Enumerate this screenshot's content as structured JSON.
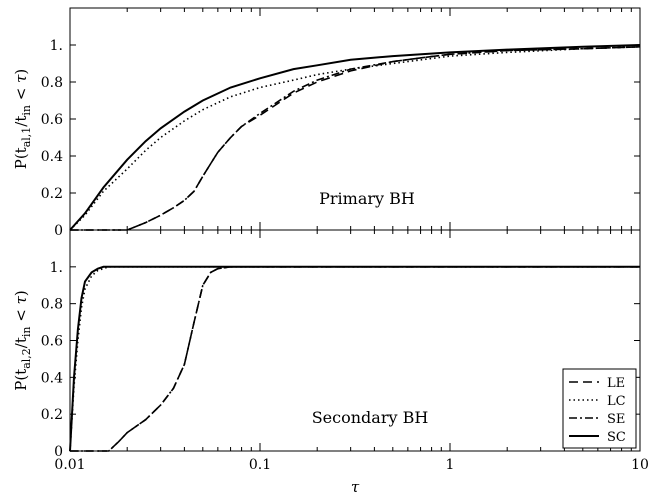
{
  "chart_data": [
    {
      "type": "line",
      "panel": "top",
      "xscale": "log",
      "xlim": [
        0.01,
        10
      ],
      "ylim": [
        0,
        1.2
      ],
      "yticks": [
        0,
        0.2,
        0.4,
        0.6,
        0.8,
        1.0
      ],
      "ytick_labels": [
        "0",
        "0.2",
        "0.4",
        "0.6",
        "0.8",
        "1."
      ],
      "ylabel": "P(t_al,1/t_in < τ)",
      "annotation": "Primary BH",
      "series": [
        {
          "name": "LE",
          "style": "dashed",
          "x": [
            0.01,
            0.015,
            0.02,
            0.025,
            0.03,
            0.035,
            0.04,
            0.045,
            0.05,
            0.06,
            0.07,
            0.08,
            0.1,
            0.15,
            0.2,
            0.3,
            0.5,
            0.7,
            1,
            2,
            5,
            10
          ],
          "y": [
            0,
            0,
            0.0,
            0.04,
            0.08,
            0.12,
            0.16,
            0.21,
            0.29,
            0.42,
            0.5,
            0.56,
            0.62,
            0.74,
            0.8,
            0.86,
            0.91,
            0.93,
            0.95,
            0.97,
            0.98,
            0.99
          ]
        },
        {
          "name": "LC",
          "style": "dotted",
          "x": [
            0.01,
            0.012,
            0.015,
            0.02,
            0.025,
            0.03,
            0.04,
            0.05,
            0.07,
            0.1,
            0.15,
            0.2,
            0.3,
            0.5,
            1,
            2,
            5,
            10
          ],
          "y": [
            0,
            0.08,
            0.21,
            0.33,
            0.43,
            0.5,
            0.59,
            0.65,
            0.72,
            0.77,
            0.81,
            0.84,
            0.87,
            0.9,
            0.94,
            0.96,
            0.98,
            0.99
          ]
        },
        {
          "name": "SE",
          "style": "dashdot",
          "x": [
            0.01,
            0.015,
            0.02,
            0.025,
            0.03,
            0.035,
            0.04,
            0.045,
            0.05,
            0.06,
            0.07,
            0.08,
            0.1,
            0.15,
            0.2,
            0.3,
            0.5,
            0.7,
            1,
            2,
            5,
            10
          ],
          "y": [
            0,
            0,
            0.0,
            0.04,
            0.08,
            0.12,
            0.16,
            0.21,
            0.29,
            0.42,
            0.5,
            0.56,
            0.63,
            0.75,
            0.81,
            0.87,
            0.91,
            0.93,
            0.95,
            0.97,
            0.98,
            0.99
          ]
        },
        {
          "name": "SC",
          "style": "solid",
          "x": [
            0.01,
            0.012,
            0.015,
            0.02,
            0.025,
            0.03,
            0.04,
            0.05,
            0.07,
            0.1,
            0.15,
            0.2,
            0.3,
            0.5,
            1,
            2,
            5,
            10
          ],
          "y": [
            0,
            0.09,
            0.23,
            0.38,
            0.48,
            0.55,
            0.64,
            0.7,
            0.77,
            0.82,
            0.87,
            0.89,
            0.92,
            0.94,
            0.96,
            0.975,
            0.99,
            1.0
          ]
        }
      ]
    },
    {
      "type": "line",
      "panel": "bottom",
      "xscale": "log",
      "xlim": [
        0.01,
        10
      ],
      "ylim": [
        0,
        1.2
      ],
      "yticks": [
        0,
        0.2,
        0.4,
        0.6,
        0.8,
        1.0
      ],
      "ytick_labels": [
        "0",
        "0.2",
        "0.4",
        "0.6",
        "0.8",
        "1."
      ],
      "xticks": [
        0.01,
        0.1,
        1,
        10
      ],
      "xtick_labels": [
        "0.01",
        "0.1",
        "1",
        "10"
      ],
      "xlabel": "τ",
      "ylabel": "P(t_al,2/t_in < τ)",
      "annotation": "Secondary BH",
      "legend": {
        "location": "lower right",
        "entries": [
          "LE",
          "LC",
          "SE",
          "SC"
        ]
      },
      "series": [
        {
          "name": "LE",
          "style": "dashed",
          "x": [
            0.01,
            0.016,
            0.018,
            0.02,
            0.025,
            0.03,
            0.035,
            0.04,
            0.045,
            0.05,
            0.055,
            0.06,
            0.07,
            0.1,
            1,
            10
          ],
          "y": [
            0,
            0,
            0.05,
            0.1,
            0.17,
            0.25,
            0.34,
            0.47,
            0.7,
            0.9,
            0.97,
            0.99,
            1.0,
            1.0,
            1.0,
            1.0
          ]
        },
        {
          "name": "LC",
          "style": "dotted",
          "x": [
            0.01,
            0.0105,
            0.011,
            0.0115,
            0.012,
            0.013,
            0.014,
            0.016,
            0.02,
            0.1,
            1,
            10
          ],
          "y": [
            0,
            0.35,
            0.6,
            0.78,
            0.88,
            0.95,
            0.98,
            1.0,
            1.0,
            1.0,
            1.0,
            1.0
          ]
        },
        {
          "name": "SE",
          "style": "dashdot",
          "x": [
            0.01,
            0.016,
            0.018,
            0.02,
            0.025,
            0.03,
            0.035,
            0.04,
            0.045,
            0.05,
            0.055,
            0.06,
            0.07,
            0.1,
            1,
            10
          ],
          "y": [
            0,
            0,
            0.05,
            0.1,
            0.17,
            0.25,
            0.34,
            0.47,
            0.7,
            0.9,
            0.97,
            0.99,
            1.0,
            1.0,
            1.0,
            1.0
          ]
        },
        {
          "name": "SC",
          "style": "solid",
          "x": [
            0.01,
            0.0105,
            0.011,
            0.0115,
            0.012,
            0.013,
            0.014,
            0.015,
            0.02,
            0.1,
            1,
            10
          ],
          "y": [
            0,
            0.4,
            0.66,
            0.83,
            0.92,
            0.97,
            0.99,
            1.0,
            1.0,
            1.0,
            1.0,
            1.0
          ]
        }
      ]
    }
  ]
}
